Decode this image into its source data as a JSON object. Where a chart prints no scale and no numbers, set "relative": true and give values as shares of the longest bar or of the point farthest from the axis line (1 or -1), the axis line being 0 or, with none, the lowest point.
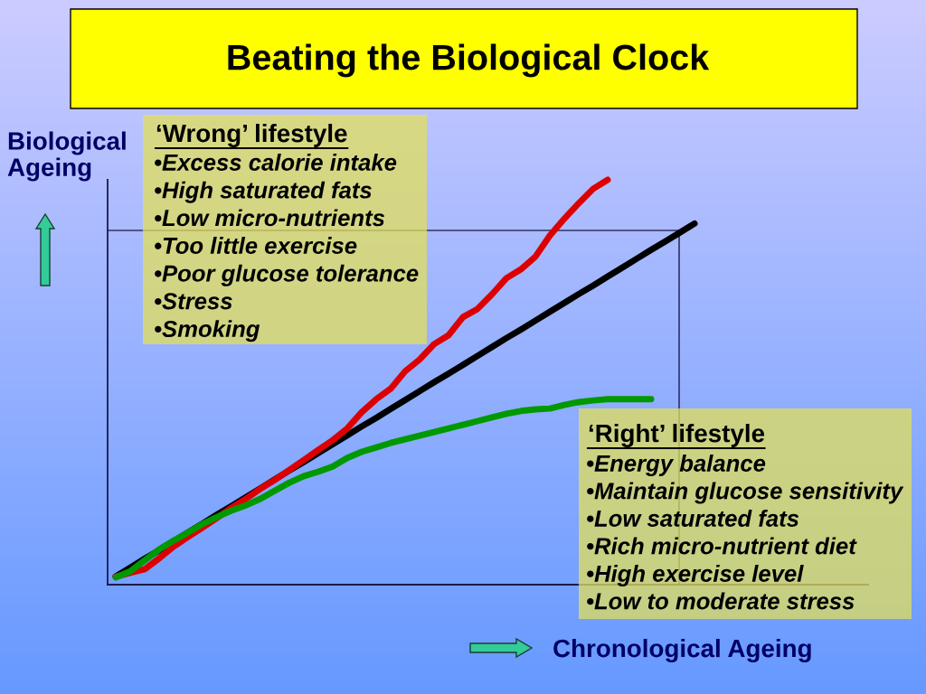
{
  "chart_data": {
    "type": "line",
    "title": "Beating the Biological Clock",
    "xlabel": "Chronological Ageing",
    "ylabel": "Biological\nAgeing",
    "relative": true,
    "tick_labels": false,
    "marker": "none",
    "line_style": "solid",
    "categories": [
      null,
      null,
      null,
      null,
      null,
      null,
      null,
      null,
      null,
      null,
      null,
      null,
      null,
      null,
      null,
      null,
      null,
      null,
      null,
      null,
      null,
      null,
      null,
      null,
      null,
      null,
      null,
      null,
      null,
      null,
      null,
      null,
      null,
      null,
      null,
      null,
      null,
      null,
      null,
      null,
      null,
      null,
      null,
      null,
      null,
      null,
      null,
      null,
      null,
      null,
      null,
      null,
      null
    ],
    "series": [
      {
        "color": "#000000",
        "values": [
          0.02,
          0.042,
          0.064,
          0.085,
          0.107,
          0.129,
          0.151,
          0.173,
          0.194,
          0.216,
          0.238,
          0.26,
          0.282,
          0.303,
          0.325,
          0.347,
          0.369,
          0.391,
          0.412,
          0.434,
          0.456,
          0.478,
          0.5,
          0.521,
          0.543,
          0.565,
          0.587,
          0.609,
          0.63,
          0.652,
          0.674,
          0.696,
          0.718,
          0.739,
          0.761,
          0.783,
          0.805,
          0.827,
          0.848,
          0.87,
          0.892,
          null,
          null,
          null,
          null,
          null,
          null,
          null,
          null,
          null,
          null,
          null,
          null
        ]
      },
      {
        "color": "#dd0000",
        "values": [
          0.02,
          0.029,
          0.038,
          0.065,
          0.094,
          0.118,
          0.141,
          0.165,
          0.19,
          0.212,
          0.237,
          0.259,
          0.283,
          0.308,
          0.333,
          0.357,
          0.386,
          0.426,
          0.458,
          0.484,
          0.527,
          0.556,
          0.594,
          0.616,
          0.661,
          0.681,
          0.717,
          0.757,
          0.779,
          0.81,
          0.862,
          0.904,
          0.942,
          0.978,
          1.0,
          null,
          null,
          null,
          null,
          null,
          null,
          null,
          null,
          null,
          null,
          null,
          null,
          null,
          null,
          null,
          null,
          null,
          null
        ]
      },
      {
        "color": "#009900",
        "values": [
          0.018,
          0.033,
          0.06,
          0.087,
          0.109,
          0.129,
          0.15,
          0.167,
          0.183,
          0.196,
          0.212,
          0.232,
          0.252,
          0.268,
          0.279,
          0.292,
          0.313,
          0.328,
          0.339,
          0.35,
          0.359,
          0.368,
          0.377,
          0.386,
          0.395,
          0.404,
          0.413,
          0.422,
          0.429,
          0.433,
          0.435,
          0.444,
          0.451,
          0.455,
          0.458,
          0.458,
          0.458,
          0.458,
          null,
          null,
          null,
          null,
          null,
          null,
          null,
          null,
          null,
          null,
          null,
          null,
          null,
          null,
          null
        ]
      }
    ],
    "ref_lines": [
      {
        "axis": "y",
        "value": 0.875,
        "color": "#333366"
      }
    ],
    "annotations": [
      "‘Wrong’ lifestyle\n•Excess calorie intake\n•High saturated fats\n•Low micro-nutrients\n•Too little exercise\n•Poor glucose tolerance\n•Stress\n•Smoking",
      "‘Right’ lifestyle\n•Energy balance\n•Maintain glucose sensitivity\n•Low saturated fats\n•Rich micro-nutrient diet\n•High exercise level\n•Low to moderate stress"
    ]
  }
}
